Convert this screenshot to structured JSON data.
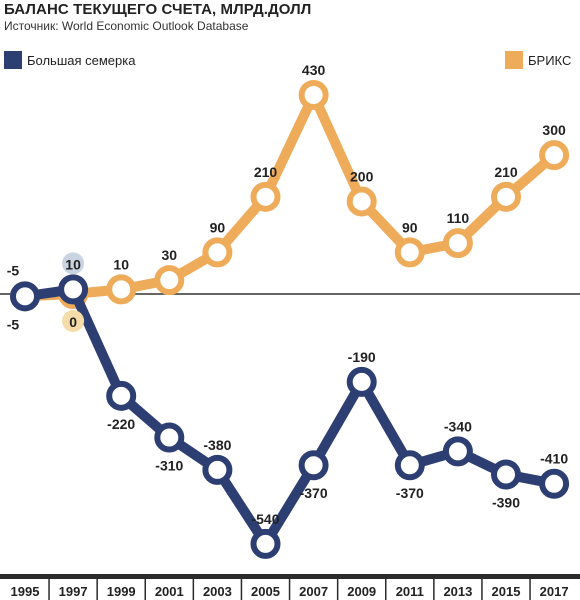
{
  "header": {
    "title": "БАЛАНС ТЕКУЩЕГО СЧЕТА, МЛРД.ДОЛЛ",
    "source": "Источник: World Economic Outlook Database"
  },
  "colors": {
    "g7": "#2d3e73",
    "brics": "#eeab5a",
    "axis": "#333333",
    "g7_marker_halo": "#c9d3e1",
    "brics_marker_halo": "#f6dca8"
  },
  "chart_data": {
    "type": "line",
    "title": "БАЛАНС ТЕКУЩЕГО СЧЕТА, МЛРД.ДОЛЛ",
    "xlabel": "",
    "ylabel": "",
    "x": [
      "1995",
      "1997",
      "1999",
      "2001",
      "2003",
      "2005",
      "2007",
      "2009",
      "2011",
      "2013",
      "2015",
      "2017"
    ],
    "ylim": [
      -560,
      440
    ],
    "grid": false,
    "series": [
      {
        "name": "Большая семерка",
        "color": "#2d3e73",
        "legend": "top-left",
        "values": [
          -5,
          10,
          -220,
          -310,
          -380,
          -540,
          -370,
          -190,
          -370,
          -340,
          -390,
          -410
        ],
        "labels": [
          "-5",
          "10",
          "-220",
          "-310",
          "-380",
          "-540",
          "-370",
          "-190",
          "-370",
          "-340",
          "-390",
          "-410"
        ]
      },
      {
        "name": "БРИКС",
        "color": "#eeab5a",
        "legend": "top-right",
        "values": [
          -5,
          0,
          10,
          30,
          90,
          210,
          430,
          200,
          90,
          110,
          210,
          300
        ],
        "labels": [
          "-5",
          "0",
          "10",
          "30",
          "90",
          "210",
          "430",
          "200",
          "90",
          "110",
          "210",
          "300"
        ]
      }
    ]
  }
}
